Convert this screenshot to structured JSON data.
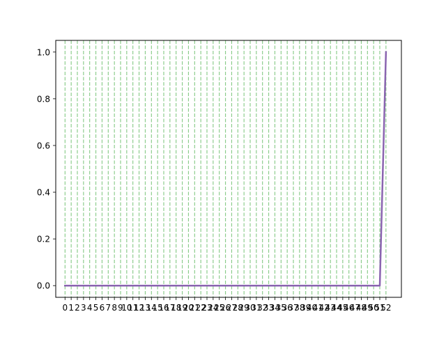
{
  "chart_data": {
    "type": "line",
    "title": "",
    "xlabel": "",
    "ylabel": "",
    "x": [
      0,
      1,
      2,
      3,
      4,
      5,
      6,
      7,
      8,
      9,
      10,
      11,
      12,
      13,
      14,
      15,
      16,
      17,
      18,
      19,
      20,
      21,
      22,
      23,
      24,
      25,
      26,
      27,
      28,
      29,
      30,
      31,
      32,
      33,
      34,
      35,
      36,
      37,
      38,
      39,
      40,
      41,
      42,
      43,
      44,
      45,
      46,
      47,
      48,
      49,
      50,
      51,
      52
    ],
    "series": [
      {
        "values": [
          0,
          0,
          0,
          0,
          0,
          0,
          0,
          0,
          0,
          0,
          0,
          0,
          0,
          0,
          0,
          0,
          0,
          0,
          0,
          0,
          0,
          0,
          0,
          0,
          0,
          0,
          0,
          0,
          0,
          0,
          0,
          0,
          0,
          0,
          0,
          0,
          0,
          0,
          0,
          0,
          0,
          0,
          0,
          0,
          0,
          0,
          0,
          0,
          0,
          0,
          0,
          0,
          1
        ],
        "color": "#8a64b0"
      }
    ],
    "xlim": [
      -1.5,
      54.5
    ],
    "ylim": [
      -0.05,
      1.05
    ],
    "xticks": [
      "0",
      "1",
      "2",
      "3",
      "4",
      "5",
      "6",
      "7",
      "8",
      "9",
      "10",
      "11",
      "12",
      "13",
      "14",
      "15",
      "16",
      "17",
      "18",
      "19",
      "20",
      "21",
      "22",
      "23",
      "24",
      "25",
      "26",
      "27",
      "28",
      "29",
      "30",
      "31",
      "32",
      "33",
      "34",
      "35",
      "36",
      "37",
      "38",
      "39",
      "40",
      "41",
      "42",
      "43",
      "44",
      "45",
      "46",
      "47",
      "48",
      "49",
      "50",
      "51",
      "52"
    ],
    "yticks": [
      0.0,
      0.2,
      0.4,
      0.6,
      0.8,
      1.0
    ],
    "ytick_labels": [
      "0.0",
      "0.2",
      "0.4",
      "0.6",
      "0.8",
      "1.0"
    ],
    "vertical_guides": {
      "x": [
        0,
        1,
        2,
        3,
        4,
        5,
        6,
        7,
        8,
        9,
        10,
        11,
        12,
        13,
        14,
        15,
        16,
        17,
        18,
        19,
        20,
        21,
        22,
        23,
        24,
        25,
        26,
        27,
        28,
        29,
        30,
        31,
        32,
        33,
        34,
        35,
        36,
        37,
        38,
        39,
        40,
        41,
        42,
        43,
        44,
        45,
        46,
        47,
        48,
        49,
        50,
        51,
        52
      ],
      "color": "#2ca02c",
      "dash_color": "#9fd59f"
    },
    "grid": false,
    "legend": "none"
  }
}
